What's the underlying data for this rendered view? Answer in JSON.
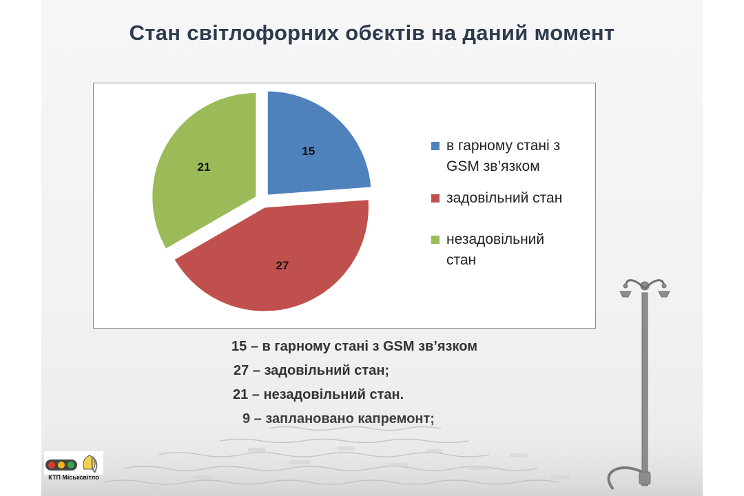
{
  "title": "Стан світлофорних обєктів на даний момент",
  "chart_data": {
    "type": "pie",
    "title": "",
    "slices": [
      {
        "label": "в гарному стані з GSM зв’язком",
        "value": 15,
        "color": "#4f81bd"
      },
      {
        "label": "задовільний стан",
        "value": 27,
        "color": "#c0504d"
      },
      {
        "label": "незадовільний стан",
        "value": 21,
        "color": "#9bbb59"
      }
    ],
    "legend": {
      "position": "right",
      "items": [
        {
          "line1": "в гарному стані з",
          "line2": "GSM зв’язком",
          "color": "#4f81bd"
        },
        {
          "line1": "задовільний стан",
          "line2": "",
          "color": "#c0504d"
        },
        {
          "line1": "незадовільний",
          "line2": "стан",
          "color": "#9bbb59"
        }
      ]
    },
    "exploded": true
  },
  "summary": [
    "15 – в гарному стані з GSM зв’язком",
    "27 – задовільний стан;",
    "21 – незадовільний стан.",
    "9 – заплановано капремонт;"
  ],
  "logo": {
    "text": "КТП Міськсвітло"
  }
}
